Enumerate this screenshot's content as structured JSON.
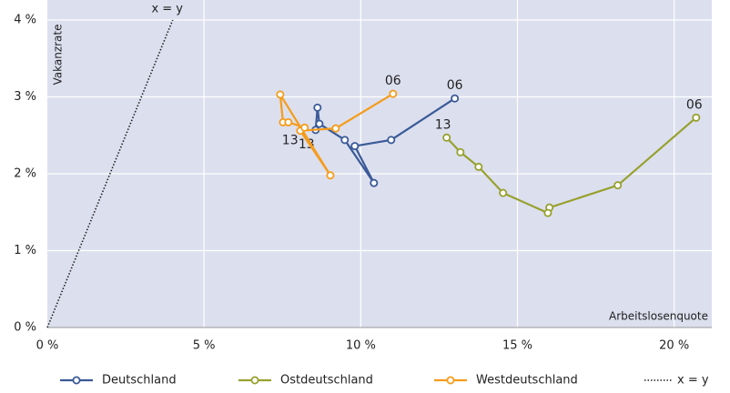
{
  "chart_data": {
    "type": "line",
    "xlabel": "Arbeitslosenquote",
    "ylabel": "Vakanzrate",
    "xlim": [
      0,
      21.2
    ],
    "ylim": [
      0,
      4
    ],
    "xticks": [
      {
        "value": 0,
        "label": "0 %"
      },
      {
        "value": 5,
        "label": "5 %"
      },
      {
        "value": 10,
        "label": "10 %"
      },
      {
        "value": 15,
        "label": "15 %"
      },
      {
        "value": 20,
        "label": "20 %"
      }
    ],
    "yticks": [
      {
        "value": 0,
        "label": "0 %"
      },
      {
        "value": 1,
        "label": "1 %"
      },
      {
        "value": 2,
        "label": "2 %"
      },
      {
        "value": 3,
        "label": "3 %"
      },
      {
        "value": 4,
        "label": "4 %"
      }
    ],
    "grid": true,
    "legend": "bottom",
    "series": [
      {
        "name": "Deutschland",
        "color": "#3a5a98",
        "start_label": "06",
        "end_label": "13",
        "x": [
          13.0,
          10.97,
          9.81,
          10.42,
          9.49,
          8.68,
          8.62,
          8.56
        ],
        "values": [
          2.98,
          2.44,
          2.36,
          1.88,
          2.44,
          2.65,
          2.86,
          2.57
        ]
      },
      {
        "name": "Ostdeutschland",
        "color": "#97a12e",
        "start_label": "06",
        "end_label": "13",
        "x": [
          20.7,
          18.2,
          16.02,
          15.97,
          14.54,
          13.76,
          13.18,
          12.74
        ],
        "values": [
          2.73,
          1.85,
          1.56,
          1.49,
          1.75,
          2.09,
          2.28,
          2.47
        ]
      },
      {
        "name": "Westdeutschland",
        "color": "#f59c1a",
        "start_label": "06",
        "end_label": "13",
        "x": [
          11.03,
          9.2,
          8.07,
          9.03,
          7.43,
          7.52,
          7.69,
          8.21
        ],
        "values": [
          3.04,
          2.59,
          2.56,
          1.98,
          3.03,
          2.67,
          2.67,
          2.6
        ]
      }
    ],
    "reference_line": {
      "name": "x = y",
      "color": "#222"
    }
  }
}
